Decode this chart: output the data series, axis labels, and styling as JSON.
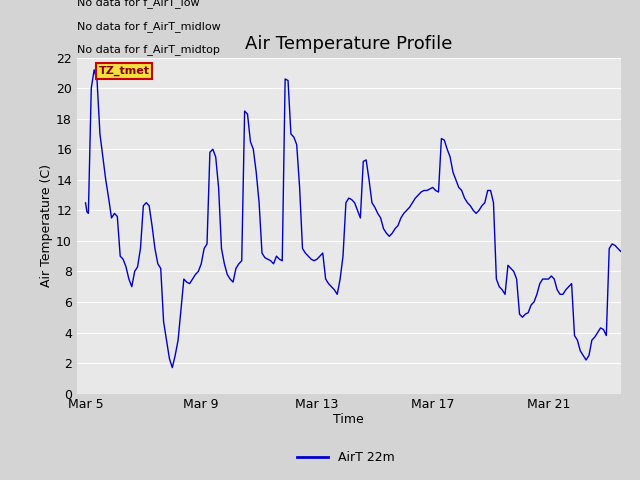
{
  "title": "Air Temperature Profile",
  "xlabel": "Time",
  "ylabel": "Air Temperature (C)",
  "legend_label": "AirT 22m",
  "annotations": [
    "No data for f_AirT_low",
    "No data for f_AirT_midlow",
    "No data for f_AirT_midtop"
  ],
  "tz_label": "TZ_tmet",
  "ylim": [
    0,
    22
  ],
  "yticks": [
    0,
    2,
    4,
    6,
    8,
    10,
    12,
    14,
    16,
    18,
    20,
    22
  ],
  "xtick_positions": [
    0,
    4,
    8,
    12,
    16
  ],
  "xtick_labels": [
    "Mar 5",
    "Mar 9",
    "Mar 13",
    "Mar 17",
    "Mar 21"
  ],
  "xlim": [
    -0.3,
    18.5
  ],
  "line_color": "#0000cc",
  "fig_bg_color": "#d4d4d4",
  "plot_bg_color": "#e8e8e8",
  "grid_color": "#ffffff",
  "title_fontsize": 13,
  "axis_label_fontsize": 9,
  "tick_fontsize": 9,
  "annot_fontsize": 8,
  "x_values": [
    0.0,
    0.05,
    0.1,
    0.2,
    0.3,
    0.4,
    0.5,
    0.6,
    0.7,
    0.8,
    0.9,
    1.0,
    1.1,
    1.2,
    1.3,
    1.4,
    1.5,
    1.6,
    1.7,
    1.8,
    1.9,
    2.0,
    2.1,
    2.2,
    2.3,
    2.4,
    2.5,
    2.6,
    2.7,
    2.8,
    2.9,
    3.0,
    3.1,
    3.2,
    3.3,
    3.4,
    3.5,
    3.6,
    3.7,
    3.8,
    3.9,
    4.0,
    4.1,
    4.2,
    4.3,
    4.4,
    4.5,
    4.6,
    4.7,
    4.8,
    4.9,
    5.0,
    5.1,
    5.2,
    5.3,
    5.4,
    5.5,
    5.6,
    5.7,
    5.8,
    5.9,
    6.0,
    6.1,
    6.2,
    6.3,
    6.4,
    6.5,
    6.6,
    6.7,
    6.8,
    6.9,
    7.0,
    7.1,
    7.2,
    7.3,
    7.4,
    7.5,
    7.6,
    7.7,
    7.8,
    7.9,
    8.0,
    8.1,
    8.2,
    8.3,
    8.4,
    8.5,
    8.6,
    8.7,
    8.8,
    8.9,
    9.0,
    9.1,
    9.2,
    9.3,
    9.4,
    9.5,
    9.6,
    9.7,
    9.8,
    9.9,
    10.0,
    10.1,
    10.2,
    10.3,
    10.4,
    10.5,
    10.6,
    10.7,
    10.8,
    10.9,
    11.0,
    11.1,
    11.2,
    11.3,
    11.4,
    11.5,
    11.6,
    11.7,
    11.8,
    11.9,
    12.0,
    12.1,
    12.2,
    12.3,
    12.4,
    12.5,
    12.6,
    12.7,
    12.8,
    12.9,
    13.0,
    13.1,
    13.2,
    13.3,
    13.4,
    13.5,
    13.6,
    13.7,
    13.8,
    13.9,
    14.0,
    14.1,
    14.2,
    14.3,
    14.4,
    14.5,
    14.6,
    14.7,
    14.8,
    14.9,
    15.0,
    15.1,
    15.2,
    15.3,
    15.4,
    15.5,
    15.6,
    15.7,
    15.8,
    15.9,
    16.0,
    16.1,
    16.2,
    16.3,
    16.4,
    16.5,
    16.6,
    16.7,
    16.8,
    16.9,
    17.0,
    17.1,
    17.2,
    17.3,
    17.4,
    17.5,
    17.6,
    17.7,
    17.8,
    17.9,
    18.0,
    18.1,
    18.2,
    18.3,
    18.4,
    18.5
  ],
  "y_values": [
    12.5,
    11.9,
    11.8,
    20.0,
    21.2,
    20.5,
    17.0,
    15.5,
    14.0,
    12.8,
    11.5,
    11.8,
    11.6,
    9.0,
    8.8,
    8.3,
    7.5,
    7.0,
    8.0,
    8.3,
    9.5,
    12.3,
    12.5,
    12.3,
    11.0,
    9.5,
    8.5,
    8.2,
    4.7,
    3.5,
    2.3,
    1.7,
    2.5,
    3.5,
    5.5,
    7.5,
    7.3,
    7.2,
    7.5,
    7.8,
    8.0,
    8.5,
    9.5,
    9.8,
    15.8,
    16.0,
    15.5,
    13.5,
    9.5,
    8.5,
    7.8,
    7.5,
    7.3,
    8.2,
    8.5,
    8.7,
    18.5,
    18.3,
    16.5,
    16.0,
    14.5,
    12.5,
    9.2,
    8.9,
    8.8,
    8.7,
    8.5,
    9.0,
    8.8,
    8.7,
    20.6,
    20.5,
    17.0,
    16.8,
    16.3,
    13.5,
    9.5,
    9.2,
    9.0,
    8.8,
    8.7,
    8.8,
    9.0,
    9.2,
    7.5,
    7.2,
    7.0,
    6.8,
    6.5,
    7.5,
    9.0,
    12.5,
    12.8,
    12.7,
    12.5,
    12.0,
    11.5,
    15.2,
    15.3,
    14.0,
    12.5,
    12.2,
    11.8,
    11.5,
    10.8,
    10.5,
    10.3,
    10.5,
    10.8,
    11.0,
    11.5,
    11.8,
    12.0,
    12.2,
    12.5,
    12.8,
    13.0,
    13.2,
    13.3,
    13.3,
    13.4,
    13.5,
    13.3,
    13.2,
    16.7,
    16.6,
    16.0,
    15.5,
    14.5,
    14.0,
    13.5,
    13.3,
    12.8,
    12.5,
    12.3,
    12.0,
    11.8,
    12.0,
    12.3,
    12.5,
    13.3,
    13.3,
    12.5,
    7.5,
    7.0,
    6.8,
    6.5,
    8.4,
    8.2,
    8.0,
    7.5,
    5.2,
    5.0,
    5.2,
    5.3,
    5.8,
    6.0,
    6.5,
    7.2,
    7.5,
    7.5,
    7.5,
    7.7,
    7.5,
    6.8,
    6.5,
    6.5,
    6.8,
    7.0,
    7.2,
    3.8,
    3.5,
    2.8,
    2.5,
    2.2,
    2.5,
    3.5,
    3.7,
    4.0,
    4.3,
    4.2,
    3.8,
    9.5,
    9.8,
    9.7,
    9.5,
    9.3
  ]
}
